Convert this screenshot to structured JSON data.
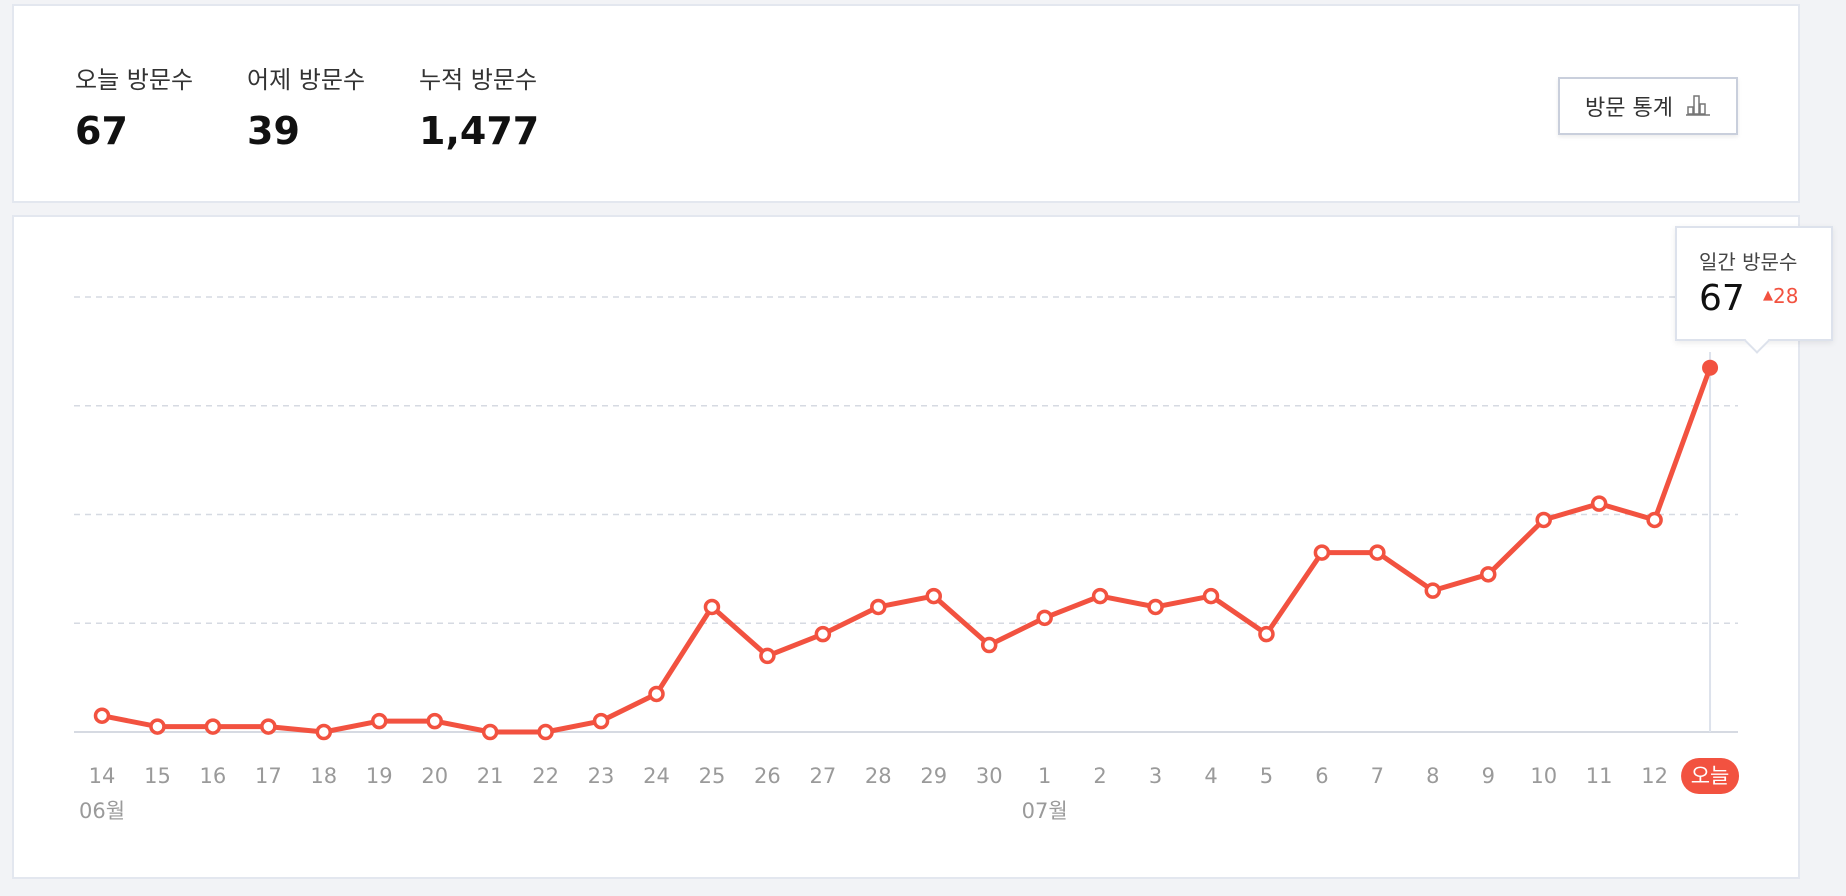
{
  "summary": {
    "today_label": "오늘 방문수",
    "today_value": "67",
    "yesterday_label": "어제 방문수",
    "yesterday_value": "39",
    "total_label": "누적 방문수",
    "total_value": "1,477",
    "stats_button_label": "방문 통계",
    "stats_button_icon": "bar-chart-icon"
  },
  "tooltip": {
    "label": "일간 방문수",
    "value": "67",
    "change": "28",
    "change_icon": "triangle-up-icon"
  },
  "colors": {
    "line": "#f25240",
    "grid": "#d6dae2",
    "axis_text": "#9a9a9a",
    "today_badge": "#f25240"
  },
  "chart_data": {
    "type": "line",
    "x": [
      "14",
      "15",
      "16",
      "17",
      "18",
      "19",
      "20",
      "21",
      "22",
      "23",
      "24",
      "25",
      "26",
      "27",
      "28",
      "29",
      "30",
      "1",
      "2",
      "3",
      "4",
      "5",
      "6",
      "7",
      "8",
      "9",
      "10",
      "11",
      "12",
      "오늘"
    ],
    "series": [
      {
        "values": [
          3,
          1,
          1,
          1,
          0,
          2,
          2,
          0,
          0,
          2,
          7,
          23,
          14,
          18,
          23,
          25,
          16,
          21,
          25,
          23,
          25,
          18,
          33,
          33,
          26,
          29,
          39,
          42,
          39,
          67
        ]
      }
    ],
    "month_labels": [
      {
        "label": "06월",
        "at": "14"
      },
      {
        "label": "07월",
        "at": "1"
      }
    ],
    "ylim": [
      0,
      80
    ],
    "grid": true,
    "highlight": "오늘"
  }
}
